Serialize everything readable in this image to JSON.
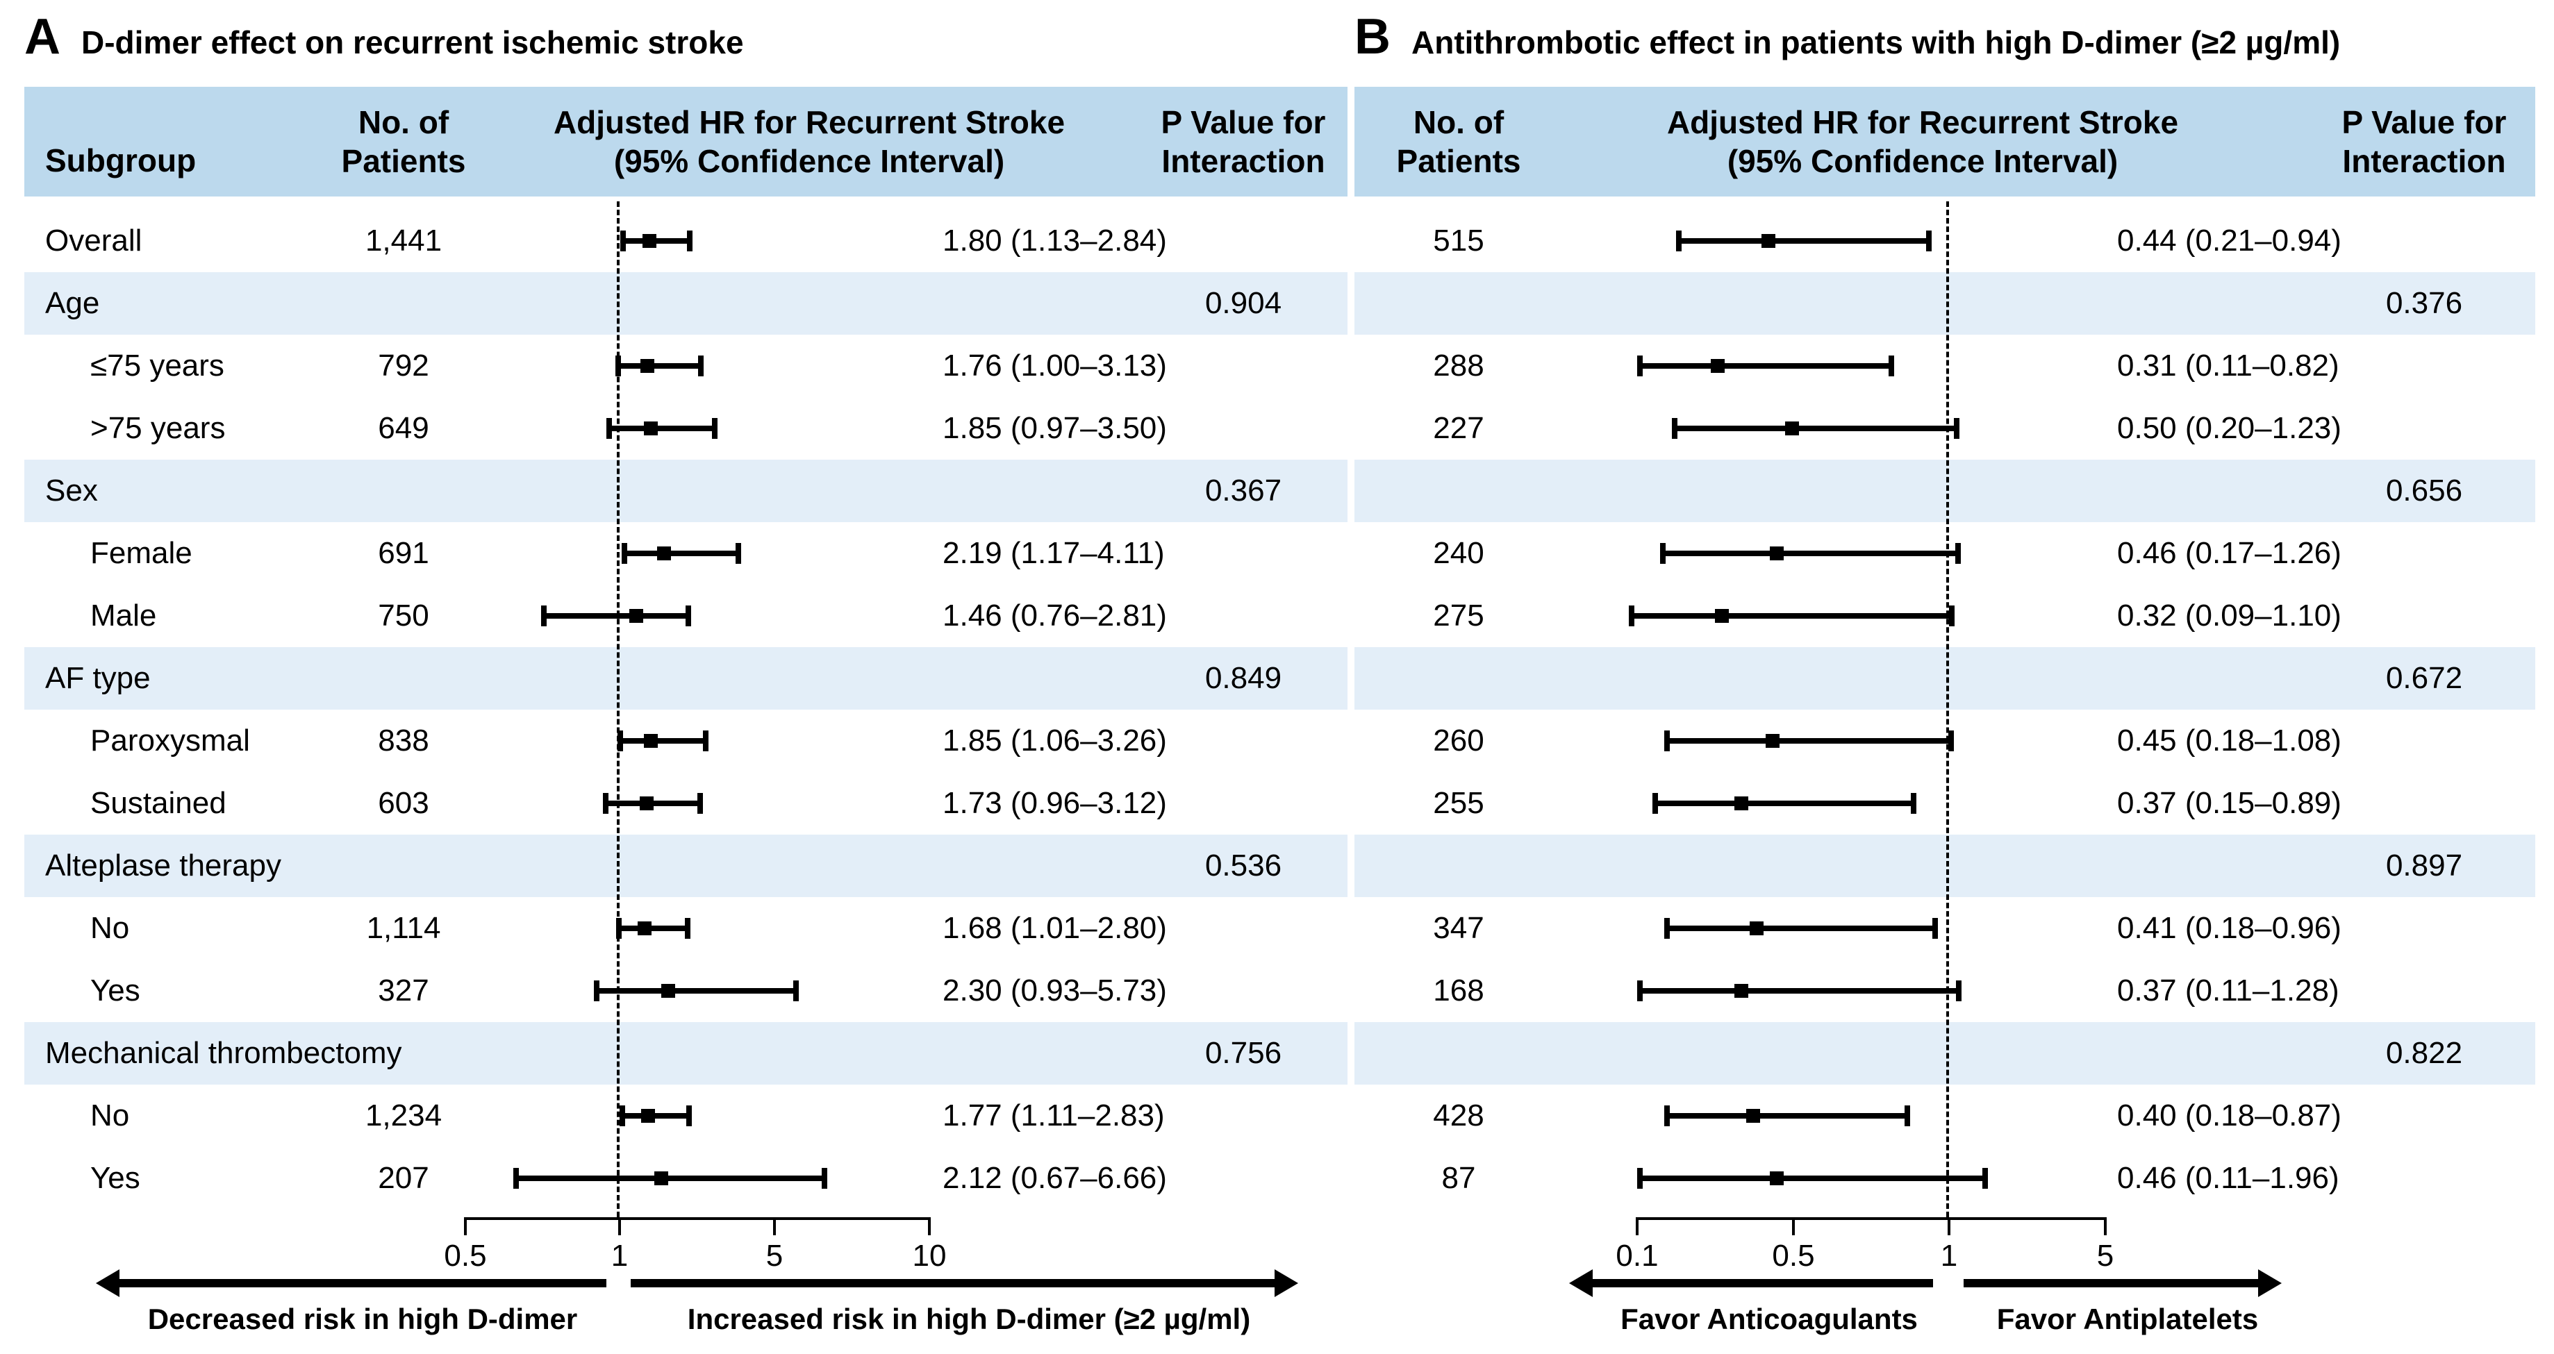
{
  "colors": {
    "header_band": "#bcd9ed",
    "category_band": "#e3eef8",
    "ink": "#000000",
    "background": "#ffffff",
    "marker": "#000000"
  },
  "chart_data": [
    {
      "type": "scatter",
      "variant": "forest_plot",
      "panel_letter": "A",
      "title": "D-dimer effect on recurrent ischemic stroke",
      "column_headers": {
        "subgroup": "Subgroup",
        "patients": [
          "No. of",
          "Patients"
        ],
        "hr": [
          "Adjusted HR for Recurrent Stroke",
          "(95% Confidence Interval)"
        ],
        "p": [
          "P Value for",
          "Interaction"
        ]
      },
      "x_axis": {
        "scale": "pseudo-log, equal tick spacing",
        "ticks": [
          0.5,
          1,
          5,
          10
        ],
        "tick_labels": [
          "0.5",
          "1",
          "5",
          "10"
        ],
        "reference_line": 1,
        "grid": false
      },
      "footer_arrows": {
        "left_label": "Decreased risk in high D-dimer",
        "right_label": "Increased risk in high D-dimer (≥2 µg/ml)"
      },
      "rows": [
        {
          "kind": "data",
          "subgroup": "Overall",
          "indent": 0,
          "patients": "1,441",
          "hr": 1.8,
          "ci_low": 1.13,
          "ci_high": 2.84,
          "hr_text": "1.80 (1.13–2.84)"
        },
        {
          "kind": "category",
          "subgroup": "Age",
          "p_interaction": "0.904"
        },
        {
          "kind": "data",
          "subgroup": "≤75 years",
          "indent": 1,
          "patients": "792",
          "hr": 1.76,
          "ci_low": 1.0,
          "ci_high": 3.13,
          "hr_text": "1.76 (1.00–3.13)"
        },
        {
          "kind": "data",
          "subgroup": ">75 years",
          "indent": 1,
          "patients": "649",
          "hr": 1.85,
          "ci_low": 0.97,
          "ci_high": 3.5,
          "hr_text": "1.85 (0.97–3.50)"
        },
        {
          "kind": "category",
          "subgroup": "Sex",
          "p_interaction": "0.367"
        },
        {
          "kind": "data",
          "subgroup": "Female",
          "indent": 1,
          "patients": "691",
          "hr": 2.19,
          "ci_low": 1.17,
          "ci_high": 4.11,
          "hr_text": "2.19 (1.17–4.11)"
        },
        {
          "kind": "data",
          "subgroup": "Male",
          "indent": 1,
          "patients": "750",
          "hr": 1.46,
          "ci_low": 0.76,
          "ci_high": 2.81,
          "hr_text": "1.46 (0.76–2.81)"
        },
        {
          "kind": "category",
          "subgroup": "AF type",
          "p_interaction": "0.849"
        },
        {
          "kind": "data",
          "subgroup": "Paroxysmal",
          "indent": 1,
          "patients": "838",
          "hr": 1.85,
          "ci_low": 1.06,
          "ci_high": 3.26,
          "hr_text": "1.85 (1.06–3.26)"
        },
        {
          "kind": "data",
          "subgroup": "Sustained",
          "indent": 1,
          "patients": "603",
          "hr": 1.73,
          "ci_low": 0.96,
          "ci_high": 3.12,
          "hr_text": "1.73 (0.96–3.12)"
        },
        {
          "kind": "category",
          "subgroup": "Alteplase therapy",
          "p_interaction": "0.536"
        },
        {
          "kind": "data",
          "subgroup": "No",
          "indent": 1,
          "patients": "1,114",
          "hr": 1.68,
          "ci_low": 1.01,
          "ci_high": 2.8,
          "hr_text": "1.68 (1.01–2.80)"
        },
        {
          "kind": "data",
          "subgroup": "Yes",
          "indent": 1,
          "patients": "327",
          "hr": 2.3,
          "ci_low": 0.93,
          "ci_high": 5.73,
          "hr_text": "2.30 (0.93–5.73)"
        },
        {
          "kind": "category",
          "subgroup": "Mechanical thrombectomy",
          "p_interaction": "0.756"
        },
        {
          "kind": "data",
          "subgroup": "No",
          "indent": 1,
          "patients": "1,234",
          "hr": 1.77,
          "ci_low": 1.11,
          "ci_high": 2.83,
          "hr_text": "1.77 (1.11–2.83)"
        },
        {
          "kind": "data",
          "subgroup": "Yes",
          "indent": 1,
          "patients": "207",
          "hr": 2.12,
          "ci_low": 0.67,
          "ci_high": 6.66,
          "hr_text": "2.12 (0.67–6.66)"
        }
      ]
    },
    {
      "type": "scatter",
      "variant": "forest_plot",
      "panel_letter": "B",
      "title": "Antithrombotic effect in patients with high D-dimer (≥2 µg/ml)",
      "column_headers": {
        "patients": [
          "No. of",
          "Patients"
        ],
        "hr": [
          "Adjusted HR for Recurrent Stroke",
          "(95% Confidence Interval)"
        ],
        "p": [
          "P Value for",
          "Interaction"
        ]
      },
      "x_axis": {
        "scale": "pseudo-log, equal tick spacing",
        "ticks": [
          0.1,
          0.5,
          1,
          5
        ],
        "tick_labels": [
          "0.1",
          "0.5",
          "1",
          "5"
        ],
        "reference_line": 1,
        "grid": false
      },
      "footer_arrows": {
        "left_label": "Favor Anticoagulants",
        "right_label": "Favor Antiplatelets"
      },
      "rows": [
        {
          "kind": "data",
          "patients": "515",
          "hr": 0.44,
          "ci_low": 0.21,
          "ci_high": 0.94,
          "hr_text": "0.44 (0.21–0.94)"
        },
        {
          "kind": "category",
          "p_interaction": "0.376"
        },
        {
          "kind": "data",
          "patients": "288",
          "hr": 0.31,
          "ci_low": 0.11,
          "ci_high": 0.82,
          "hr_text": "0.31 (0.11–0.82)"
        },
        {
          "kind": "data",
          "patients": "227",
          "hr": 0.5,
          "ci_low": 0.2,
          "ci_high": 1.23,
          "hr_text": "0.50 (0.20–1.23)"
        },
        {
          "kind": "category",
          "p_interaction": "0.656"
        },
        {
          "kind": "data",
          "patients": "240",
          "hr": 0.46,
          "ci_low": 0.17,
          "ci_high": 1.26,
          "hr_text": "0.46 (0.17–1.26)"
        },
        {
          "kind": "data",
          "patients": "275",
          "hr": 0.32,
          "ci_low": 0.09,
          "ci_high": 1.1,
          "hr_text": "0.32 (0.09–1.10)"
        },
        {
          "kind": "category",
          "p_interaction": "0.672"
        },
        {
          "kind": "data",
          "patients": "260",
          "hr": 0.45,
          "ci_low": 0.18,
          "ci_high": 1.08,
          "hr_text": "0.45 (0.18–1.08)"
        },
        {
          "kind": "data",
          "patients": "255",
          "hr": 0.37,
          "ci_low": 0.15,
          "ci_high": 0.89,
          "hr_text": "0.37 (0.15–0.89)"
        },
        {
          "kind": "category",
          "p_interaction": "0.897"
        },
        {
          "kind": "data",
          "patients": "347",
          "hr": 0.41,
          "ci_low": 0.18,
          "ci_high": 0.96,
          "hr_text": "0.41 (0.18–0.96)"
        },
        {
          "kind": "data",
          "patients": "168",
          "hr": 0.37,
          "ci_low": 0.11,
          "ci_high": 1.28,
          "hr_text": "0.37 (0.11–1.28)"
        },
        {
          "kind": "category",
          "p_interaction": "0.822"
        },
        {
          "kind": "data",
          "patients": "428",
          "hr": 0.4,
          "ci_low": 0.18,
          "ci_high": 0.87,
          "hr_text": "0.40 (0.18–0.87)"
        },
        {
          "kind": "data",
          "patients": "87",
          "hr": 0.46,
          "ci_low": 0.11,
          "ci_high": 1.96,
          "hr_text": "0.46 (0.11–1.96)"
        }
      ]
    }
  ]
}
